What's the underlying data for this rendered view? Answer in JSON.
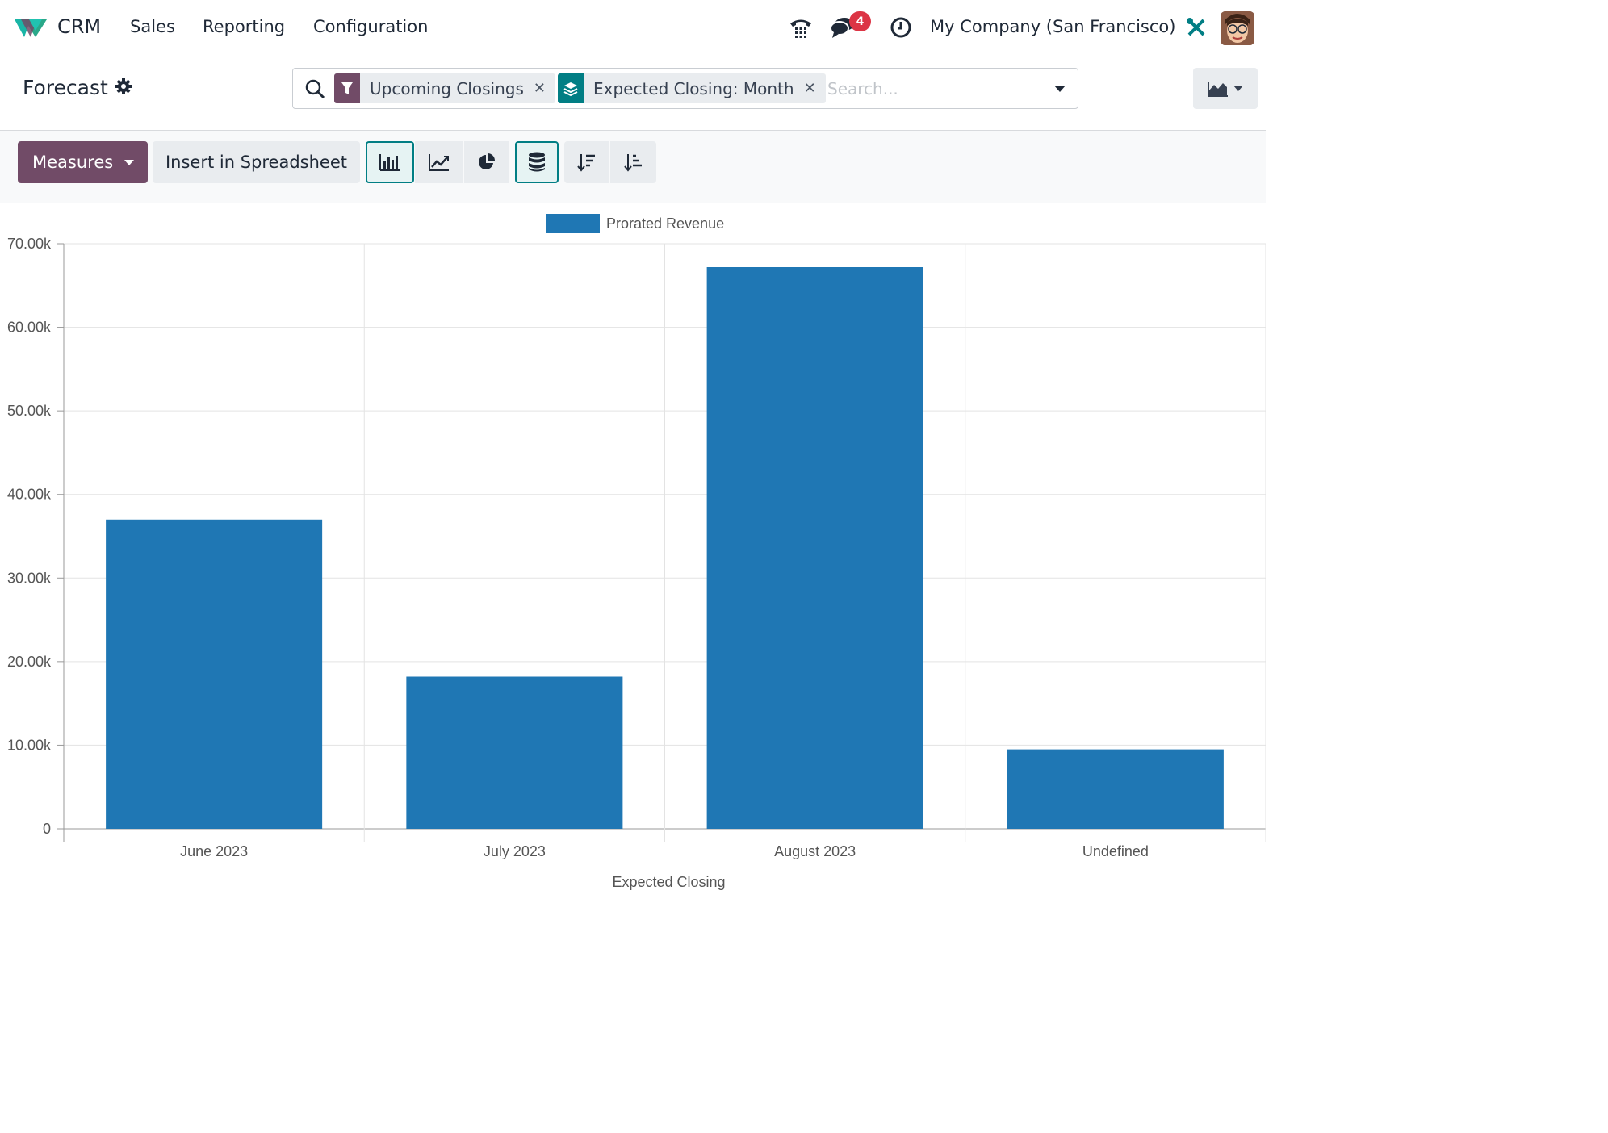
{
  "navbar": {
    "app_name": "CRM",
    "menus": [
      "Sales",
      "Reporting",
      "Configuration"
    ],
    "messages_badge": "4",
    "company": "My Company (San Francisco)"
  },
  "control_panel": {
    "title": "Forecast",
    "facets": [
      {
        "label": "Upcoming Closings",
        "icon": "filter-icon",
        "color": "#714b67"
      },
      {
        "label": "Expected Closing: Month",
        "icon": "group-by-layers-icon",
        "color": "#017e84"
      }
    ],
    "search_placeholder": "Search..."
  },
  "toolbar": {
    "measures_label": "Measures",
    "insert_label": "Insert in Spreadsheet"
  },
  "colors": {
    "brand": "#714b67",
    "accent": "#017e84",
    "bar": "#1f77b4",
    "badge": "#dc3545"
  },
  "chart_data": {
    "type": "bar",
    "title": "",
    "xlabel": "Expected Closing",
    "ylabel": "",
    "categories": [
      "June 2023",
      "July 2023",
      "August 2023",
      "Undefined"
    ],
    "series": [
      {
        "name": "Prorated Revenue",
        "values": [
          37000,
          18200,
          67200,
          9500
        ]
      }
    ],
    "ylim": [
      0,
      70000
    ],
    "y_ticks": [
      0,
      10000,
      20000,
      30000,
      40000,
      50000,
      60000,
      70000
    ],
    "y_tick_labels": [
      "0",
      "10.00k",
      "20.00k",
      "30.00k",
      "40.00k",
      "50.00k",
      "60.00k",
      "70.00k"
    ],
    "grid": true,
    "legend_position": "top-center"
  }
}
